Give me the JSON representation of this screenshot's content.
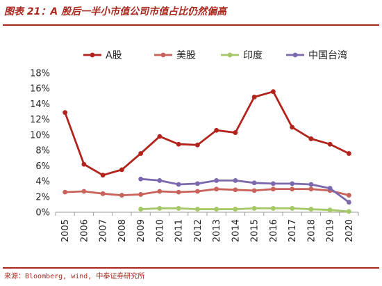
{
  "title": "图表 21：A 股后一半小市值公司市值占比仍然偏高",
  "source": "来源：Bloomberg, wind, 中泰证券研究所",
  "chart_data": {
    "type": "line",
    "title": "图表 21：A 股后一半小市值公司市值占比仍然偏高",
    "xlabel": "",
    "ylabel": "",
    "categories": [
      "2005",
      "2006",
      "2007",
      "2008",
      "2009",
      "2010",
      "2011",
      "2012",
      "2013",
      "2014",
      "2015",
      "2016",
      "2017",
      "2018",
      "2019",
      "2020"
    ],
    "ylim": [
      0,
      18
    ],
    "yticks": [
      "0%",
      "2%",
      "4%",
      "6%",
      "8%",
      "10%",
      "12%",
      "14%",
      "16%",
      "18%"
    ],
    "grid": false,
    "legend_position": "top",
    "series": [
      {
        "name": "A股",
        "color": "#b2231c",
        "values": [
          12.9,
          6.2,
          4.8,
          5.5,
          7.6,
          9.8,
          8.8,
          8.7,
          10.6,
          10.3,
          14.9,
          15.6,
          11.0,
          9.5,
          8.8,
          7.6
        ]
      },
      {
        "name": "美股",
        "color": "#c8625a",
        "values": [
          2.6,
          2.7,
          2.4,
          2.2,
          2.3,
          2.7,
          2.6,
          2.7,
          3.0,
          2.9,
          2.8,
          3.0,
          3.0,
          3.0,
          2.8,
          2.2
        ]
      },
      {
        "name": "印度",
        "color": "#a4c865",
        "values": [
          null,
          null,
          null,
          null,
          0.4,
          0.5,
          0.5,
          0.4,
          0.4,
          0.4,
          0.5,
          0.5,
          0.5,
          0.4,
          0.3,
          0.1
        ]
      },
      {
        "name": "中国台湾",
        "color": "#7c68ad",
        "values": [
          null,
          null,
          null,
          null,
          4.3,
          4.1,
          3.6,
          3.7,
          4.1,
          4.1,
          3.8,
          3.7,
          3.7,
          3.6,
          3.1,
          1.3
        ]
      }
    ]
  }
}
